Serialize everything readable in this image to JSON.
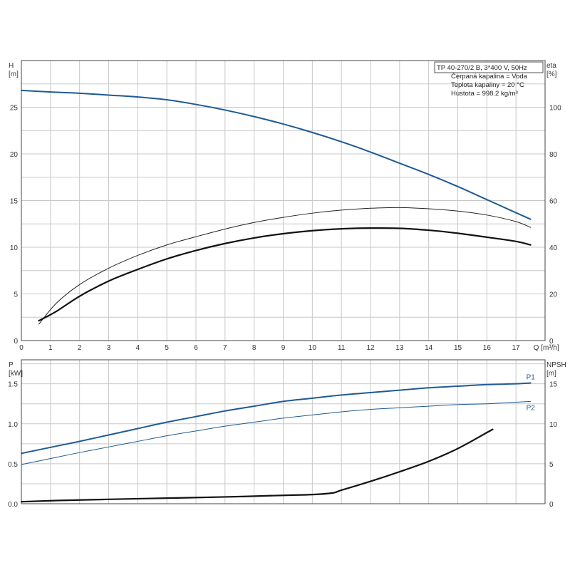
{
  "chart_data": [
    {
      "id": "head-efficiency",
      "type": "line",
      "x_label": "Q [m³/h]",
      "y_label_left": [
        "H",
        "[m]"
      ],
      "y_label_right": [
        "eta",
        "[%]"
      ],
      "xlim": [
        0,
        18
      ],
      "x_ticks": [
        0,
        1,
        2,
        3,
        4,
        5,
        6,
        7,
        8,
        9,
        10,
        11,
        12,
        13,
        14,
        15,
        16,
        17
      ],
      "ylim_left": [
        0,
        30
      ],
      "y_ticks_left": [
        0,
        5,
        10,
        15,
        20,
        25
      ],
      "ylim_right": [
        0,
        120
      ],
      "y_ticks_right": [
        0,
        20,
        40,
        60,
        80,
        100
      ],
      "grid": true,
      "legend_box": [
        "TP 40-270/2 B, 3*400 V, 50Hz",
        "Čerpaná kapalina = Voda",
        "Teplota kapaliny = 20 °C",
        "Hustota = 998.2 kg/m³"
      ],
      "series": [
        {
          "axis": "left",
          "color": "#1f5a94",
          "width": 2,
          "x": [
            0,
            1.2,
            2,
            3,
            4,
            5,
            6,
            7,
            8,
            9,
            10,
            11,
            12,
            13,
            14,
            15,
            16,
            17,
            17.5
          ],
          "y": [
            26.8,
            26.6,
            26.5,
            26.3,
            26.1,
            25.8,
            25.3,
            24.7,
            24.0,
            23.2,
            22.3,
            21.3,
            20.2,
            19.0,
            17.8,
            16.5,
            15.1,
            13.7,
            13.0
          ]
        },
        {
          "axis": "left",
          "color": "#1f5a94",
          "width": 1,
          "x": [
            0,
            1.2,
            2,
            3,
            4,
            5,
            6,
            7,
            8,
            9,
            10,
            11,
            12,
            13,
            14,
            15,
            16,
            17,
            17.5
          ],
          "y": [
            26.8,
            26.6,
            26.5,
            26.3,
            26.1,
            25.8,
            25.3,
            24.7,
            24.0,
            23.2,
            22.3,
            21.3,
            20.2,
            19.0,
            17.8,
            16.5,
            15.1,
            13.7,
            13.0
          ]
        },
        {
          "axis": "right",
          "color": "#222222",
          "width": 1,
          "x": [
            0.6,
            1.2,
            2,
            3,
            4,
            5,
            6,
            7,
            8,
            9,
            10,
            11,
            12,
            13,
            14,
            15,
            16,
            17,
            17.5
          ],
          "y": [
            7,
            16,
            24,
            31,
            36.5,
            41,
            44.5,
            47.8,
            50.6,
            52.8,
            54.6,
            55.9,
            56.7,
            57.0,
            56.5,
            55.5,
            53.8,
            51.0,
            48.5
          ]
        },
        {
          "axis": "right",
          "color": "#111111",
          "width": 2.2,
          "x": [
            0.6,
            1.2,
            2,
            3,
            4,
            5,
            6,
            7,
            8,
            9,
            10,
            11,
            12,
            13,
            14,
            15,
            16,
            17,
            17.5
          ],
          "y": [
            8.5,
            12.5,
            19,
            25.5,
            30.5,
            35,
            38.6,
            41.6,
            44.0,
            45.8,
            47.1,
            47.9,
            48.2,
            48.1,
            47.3,
            46.0,
            44.3,
            42.5,
            41.0
          ]
        }
      ]
    },
    {
      "id": "power-npsh",
      "type": "line",
      "y_label_left": [
        "P",
        "[kW]"
      ],
      "y_label_right": [
        "NPSH",
        "[m]"
      ],
      "xlim": [
        0,
        18
      ],
      "ylim_left": [
        0,
        1.8
      ],
      "y_ticks_left": [
        0.0,
        0.5,
        1.0,
        1.5
      ],
      "y_tick_labels_left": [
        "0.0",
        "0.5",
        "1.0",
        "1.5"
      ],
      "ylim_right": [
        0,
        18
      ],
      "y_ticks_right": [
        0,
        5,
        10,
        15
      ],
      "grid": true,
      "series": [
        {
          "name": "P1",
          "axis": "left",
          "color": "#1f5a94",
          "width": 2,
          "x": [
            0,
            1.2,
            2,
            3,
            4,
            5,
            6,
            7,
            8,
            9,
            10,
            11,
            12,
            13,
            14,
            15,
            16,
            17,
            17.5
          ],
          "y": [
            0.63,
            0.72,
            0.78,
            0.86,
            0.94,
            1.02,
            1.09,
            1.16,
            1.22,
            1.28,
            1.32,
            1.36,
            1.39,
            1.42,
            1.45,
            1.47,
            1.49,
            1.5,
            1.51
          ]
        },
        {
          "name": "P2",
          "axis": "left",
          "color": "#1f5a94",
          "width": 1,
          "x": [
            0,
            1.2,
            2,
            3,
            4,
            5,
            6,
            7,
            8,
            9,
            10,
            11,
            12,
            13,
            14,
            15,
            16,
            17,
            17.5
          ],
          "y": [
            0.49,
            0.58,
            0.64,
            0.71,
            0.78,
            0.85,
            0.91,
            0.97,
            1.02,
            1.07,
            1.11,
            1.15,
            1.18,
            1.2,
            1.22,
            1.24,
            1.25,
            1.27,
            1.28
          ]
        },
        {
          "axis": "right",
          "color": "#111111",
          "width": 2.2,
          "x": [
            0,
            1.2,
            3,
            5,
            7,
            9,
            10,
            10.7,
            11,
            12,
            13,
            14,
            15,
            16,
            16.2
          ],
          "y": [
            0.25,
            0.4,
            0.55,
            0.7,
            0.85,
            1.05,
            1.15,
            1.35,
            1.7,
            2.8,
            4.0,
            5.3,
            6.9,
            8.9,
            9.3
          ]
        }
      ]
    }
  ]
}
